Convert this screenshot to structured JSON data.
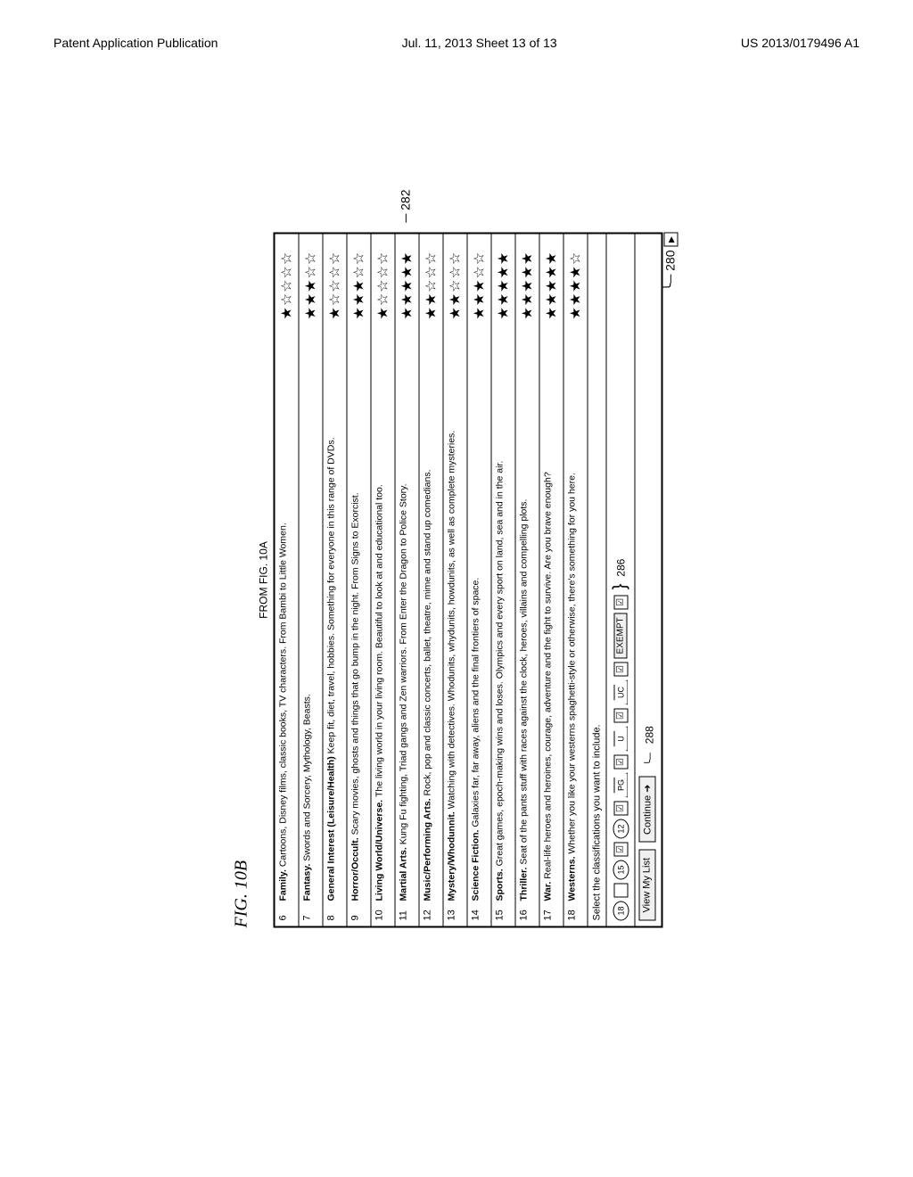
{
  "header": {
    "left": "Patent Application Publication",
    "center": "Jul. 11, 2013  Sheet 13 of 13",
    "right": "US 2013/0179496 A1"
  },
  "fig_label": "FIG. 10B",
  "from_label": "FROM FIG. 10A",
  "rows": [
    {
      "n": "6",
      "title": "Family.",
      "rest": "Cartoons, Disney films, classic books, TV characters.  From Bambi to Little Women.",
      "rating": 1
    },
    {
      "n": "7",
      "title": "Fantasy.",
      "rest": "Swords and Sorcery, Mythology, Beasts.",
      "rating": 3
    },
    {
      "n": "8",
      "title": "General Interest (Leisure/Health)",
      "rest": "Keep fit, diet, travel, hobbies.  Something for everyone in this range of DVDs.",
      "rating": 1
    },
    {
      "n": "9",
      "title": "Horror/Occult.",
      "rest": "Scary movies, ghosts and things that go bump in the night.  From Signs to Exorcist.",
      "rating": 3
    },
    {
      "n": "10",
      "title": "Living World/Universe.",
      "rest": "The living world in your living room.  Beautiful to look at and educational too.",
      "rating": 1
    },
    {
      "n": "11",
      "title": "Martial Arts.",
      "rest": "Kung Fu fighting, Triad gangs and Zen warriors.  From Enter the Dragon to Police Story.",
      "rating": 5
    },
    {
      "n": "12",
      "title": "Music/Performing Arts.",
      "rest": "Rock, pop and classic concerts, ballet, theatre, mime and stand up comedians.",
      "rating": 2
    },
    {
      "n": "13",
      "title": "Mystery/Whodunnit.",
      "rest": "Watching with detectives.  Whodunits, whydunits, howdunits, as well as complete mysteries.",
      "rating": 2
    },
    {
      "n": "14",
      "title": "Science Fiction.",
      "rest": "Galaxies far, far away, aliens and the final frontiers of space.",
      "rating": 3
    },
    {
      "n": "15",
      "title": "Sports.",
      "rest": "Great games, epoch-making wins and loses.  Olympics and every sport on land, sea and in the air.",
      "rating": 5
    },
    {
      "n": "16",
      "title": "Thriller.",
      "rest": "Seat of the pants stuff with races against the clock, heroes, villains and compelling plots.",
      "rating": 5
    },
    {
      "n": "17",
      "title": "War.",
      "rest": "Real-life heroes and heroines, courage, adventure and the fight to survive.  Are you brave enough?",
      "rating": 5
    },
    {
      "n": "18",
      "title": "Westerns.",
      "rest": "Whether you like your westerns spaghetti-style or otherwise, there's something for you here.",
      "rating": 4
    }
  ],
  "select_label": "Select the classifications you want to include.",
  "ratings": {
    "r18": "18",
    "r15": "15",
    "r12": "12",
    "rpg": "PG",
    "ru": "U",
    "ruc": "UC",
    "exempt": "EXEMPT"
  },
  "buttons": {
    "view": "View My List",
    "continue": "Continue"
  },
  "callouts": {
    "c282": "282",
    "c286": "286",
    "c288": "288",
    "c280": "280"
  },
  "checkmark": "☑",
  "arrow": "➜"
}
